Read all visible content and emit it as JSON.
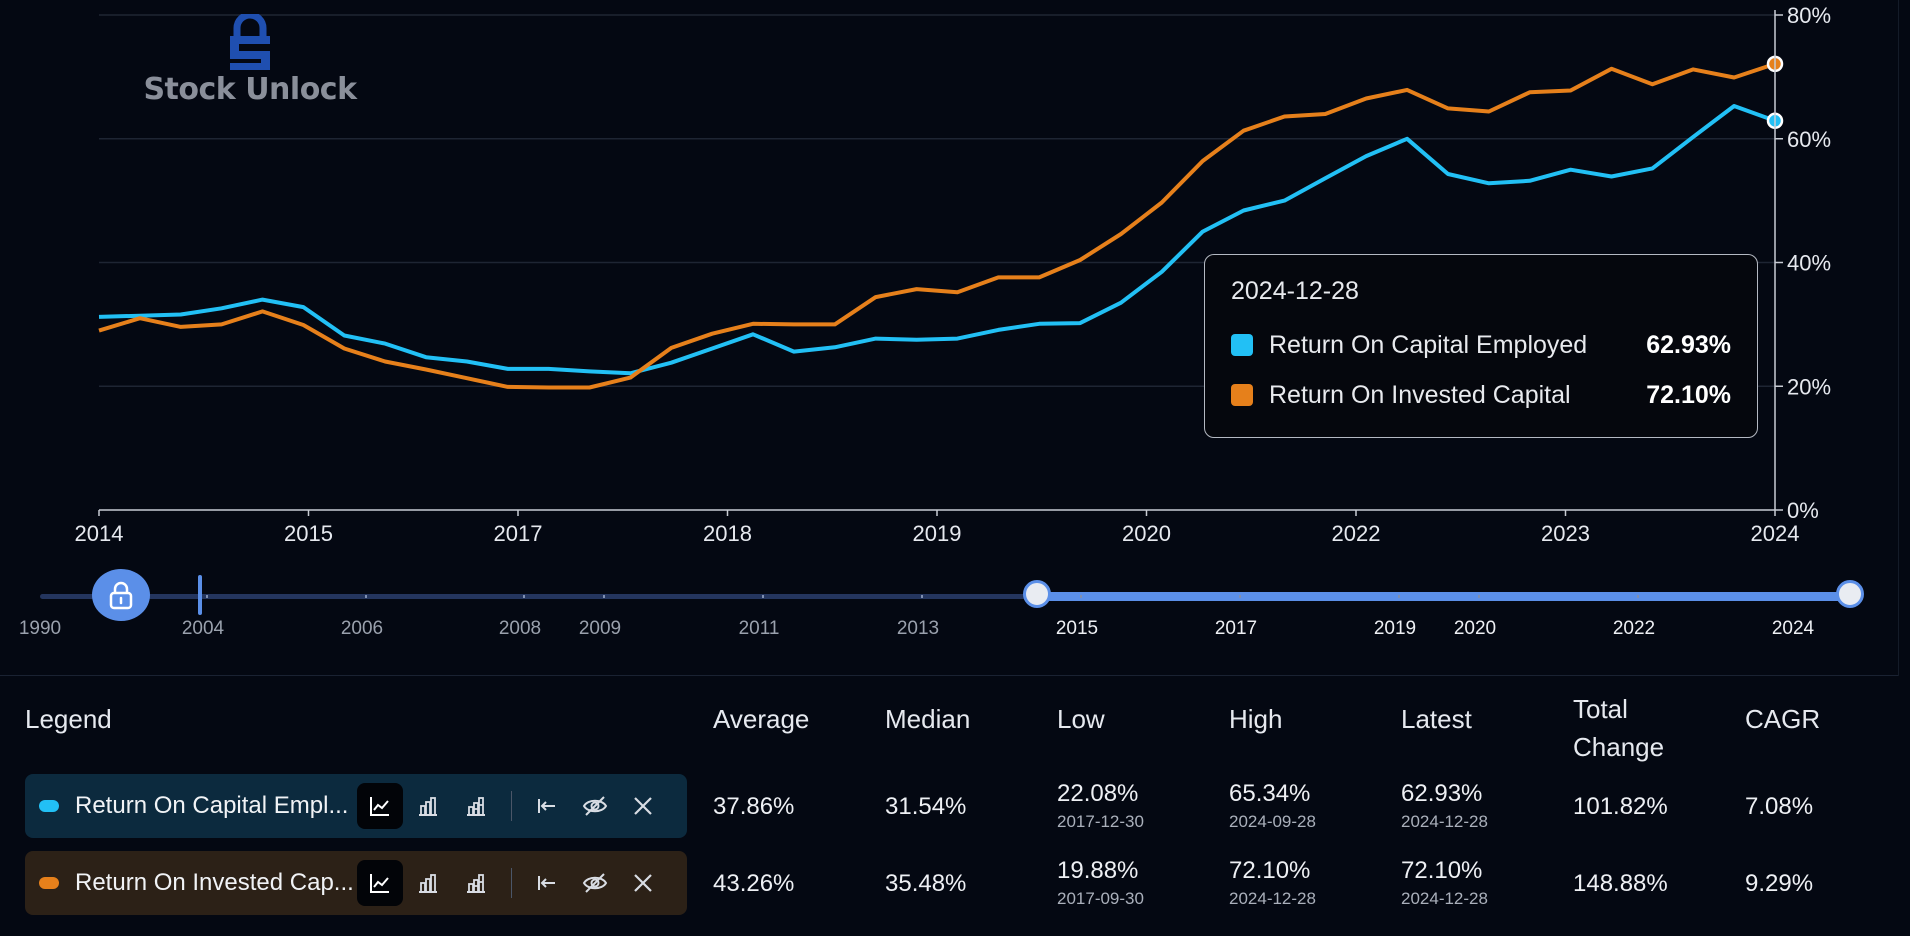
{
  "logo": {
    "text": "Stock Unlock"
  },
  "chart_data": {
    "type": "line",
    "x_tick_labels": [
      "2014",
      "2015",
      "2017",
      "2018",
      "2019",
      "2020",
      "2022",
      "2023",
      "2024"
    ],
    "y_tick_labels": [
      "0%",
      "20%",
      "40%",
      "60%",
      "80%"
    ],
    "ylim": [
      0,
      80
    ],
    "y_unit": "%",
    "grid": true,
    "series": [
      {
        "name": "Return On Capital Employed",
        "color": "#22c0f5",
        "values": [
          31.2,
          31.4,
          31.6,
          32.6,
          34.0,
          32.8,
          28.2,
          26.9,
          24.7,
          24.0,
          22.8,
          22.8,
          22.4,
          22.1,
          23.8,
          26.1,
          28.4,
          25.6,
          26.3,
          27.7,
          27.5,
          27.7,
          29.1,
          30.1,
          30.2,
          33.5,
          38.5,
          45.0,
          48.4,
          50.0,
          53.6,
          57.2,
          60.0,
          54.3,
          52.8,
          53.2,
          55.0,
          53.9,
          55.2,
          60.3,
          65.3,
          62.9
        ]
      },
      {
        "name": "Return On Invested Capital",
        "color": "#e6801b",
        "values": [
          29.0,
          31.0,
          29.6,
          30.0,
          32.1,
          29.9,
          26.1,
          24.0,
          22.7,
          21.3,
          19.9,
          19.8,
          19.8,
          21.4,
          26.2,
          28.5,
          30.1,
          30.0,
          30.0,
          34.4,
          35.7,
          35.2,
          37.6,
          37.6,
          40.4,
          44.6,
          49.7,
          56.4,
          61.3,
          63.6,
          64.0,
          66.5,
          67.9,
          64.9,
          64.4,
          67.5,
          67.8,
          71.3,
          68.8,
          71.2,
          69.9,
          72.1
        ]
      }
    ]
  },
  "tooltip": {
    "date": "2024-12-28",
    "rows": [
      {
        "label": "Return On Capital Employed",
        "value": "62.93%",
        "color": "#22c0f5"
      },
      {
        "label": "Return On Invested Capital",
        "value": "72.10%",
        "color": "#e6801b"
      }
    ]
  },
  "range_slider": {
    "labels": [
      "1990",
      "2004",
      "2006",
      "2008",
      "2009",
      "2011",
      "2013",
      "2015",
      "2017",
      "2019",
      "2020",
      "2022",
      "2024"
    ],
    "selected_from": "2015",
    "selected_to": "2024",
    "locked": true
  },
  "table": {
    "headers": {
      "legend": "Legend",
      "average": "Average",
      "median": "Median",
      "low": "Low",
      "high": "High",
      "latest": "Latest",
      "total_change_1": "Total",
      "total_change_2": "Change",
      "cagr": "CAGR"
    },
    "rows": [
      {
        "name": "Return On Capital Empl...",
        "color": "#22c0f5",
        "bg": "#0c2a3e",
        "average": "37.86%",
        "median": "31.54%",
        "low": "22.08%",
        "low_date": "2017-12-30",
        "high": "65.34%",
        "high_date": "2024-09-28",
        "latest": "62.93%",
        "latest_date": "2024-12-28",
        "total_change": "101.82%",
        "cagr": "7.08%"
      },
      {
        "name": "Return On Invested Cap...",
        "color": "#e6801b",
        "bg": "#2c2117",
        "average": "43.26%",
        "median": "35.48%",
        "low": "19.88%",
        "low_date": "2017-09-30",
        "high": "72.10%",
        "high_date": "2024-12-28",
        "latest": "72.10%",
        "latest_date": "2024-12-28",
        "total_change": "148.88%",
        "cagr": "9.29%"
      }
    ]
  }
}
